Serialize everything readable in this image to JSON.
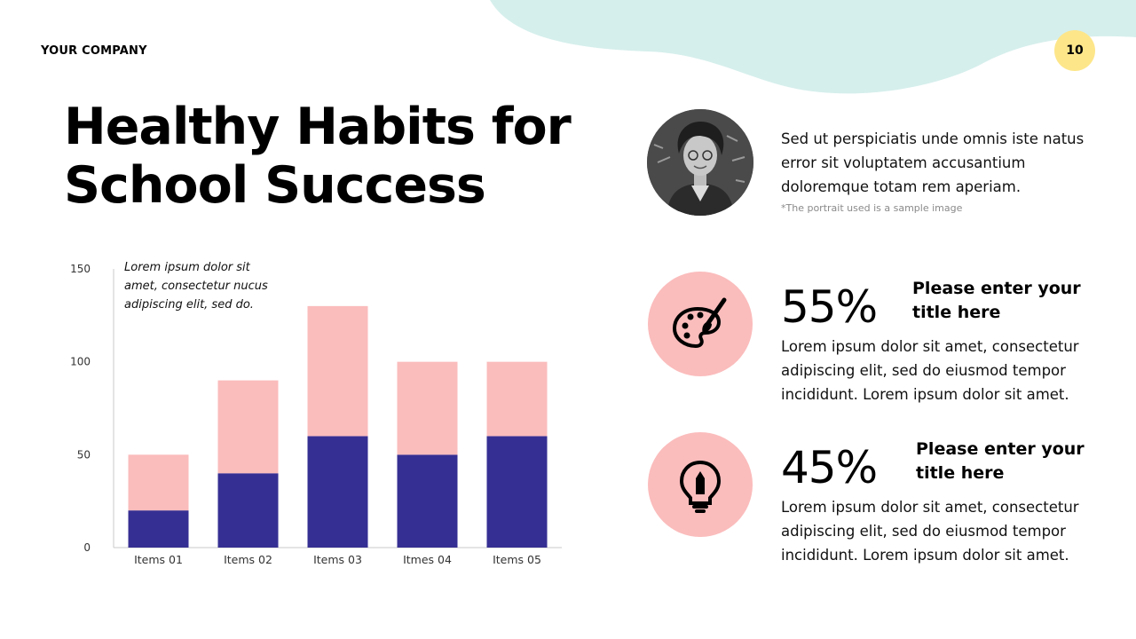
{
  "header": {
    "company": "YOUR COMPANY",
    "page_number": "10"
  },
  "title_line1": "Healthy Habits for",
  "title_line2": "School Success",
  "chart_note": "Lorem ipsum dolor sit amet, consectetur nucus adipiscing elit, sed do.",
  "profile": {
    "text": "Sed ut perspiciatis unde omnis iste natus error sit voluptatem accusantium doloremque totam rem aperiam.",
    "note": "*The portrait used is a sample image"
  },
  "stats": [
    {
      "value": "55%",
      "title": "Please enter your title here",
      "desc": "Lorem ipsum dolor sit amet, consectetur adipiscing elit, sed do eiusmod tempor incididunt. Lorem ipsum dolor sit amet.",
      "icon": "palette-brush-icon"
    },
    {
      "value": "45%",
      "title": "Please enter your title here",
      "desc": "Lorem ipsum dolor sit amet, consectetur adipiscing elit, sed do eiusmod tempor incididunt. Lorem ipsum dolor sit amet.",
      "icon": "lightbulb-pencil-icon"
    }
  ],
  "colors": {
    "bottom_series": "#362f93",
    "top_series": "#fbbcbc",
    "accent_blob": "#d5efec",
    "badge": "#fde68a",
    "icon_circle": "#fbbcbc"
  },
  "chart_data": {
    "type": "bar",
    "stacked": true,
    "categories": [
      "Items 01",
      "Items 02",
      "Items 03",
      "Itmes 04",
      "Items 05"
    ],
    "series": [
      {
        "values": [
          20,
          40,
          60,
          50,
          60
        ]
      },
      {
        "values": [
          30,
          50,
          70,
          50,
          40
        ]
      }
    ],
    "ylim": [
      0,
      150
    ],
    "yticks": [
      0,
      50,
      100,
      150
    ],
    "grid": false
  }
}
